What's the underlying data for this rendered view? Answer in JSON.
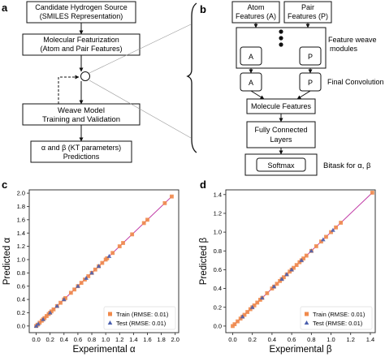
{
  "panels": {
    "a": {
      "letter": "a",
      "boxes": [
        [
          "Candidate Hydrogen Source",
          "(SMILES Representation)"
        ],
        [
          "Molecular Featurization",
          "(Atom and Pair Features)"
        ],
        [
          "Weave Model",
          "Training and Validation"
        ],
        [
          "α and β (KT parameters)",
          "Predictions"
        ]
      ]
    },
    "b": {
      "letter": "b",
      "atom_features": [
        "Atom",
        "Features (A)"
      ],
      "pair_features": [
        "Pair",
        "Features (P)"
      ],
      "module_label": [
        "Feature weave",
        "modules"
      ],
      "node_a": "A",
      "node_p": "P",
      "final_convolution": "Final Convolution",
      "molecule_features": "Molecule Features",
      "fully_connected": [
        "Fully Connected",
        "Layers"
      ],
      "softmax": "Softmax",
      "bitask": "Bitask for  α, β"
    }
  },
  "chart_data": [
    {
      "panel": "c",
      "type": "scatter",
      "xlabel": "Experimental α",
      "ylabel": "Predicted α",
      "xlim": [
        -0.1,
        2.05
      ],
      "ylim": [
        -0.1,
        2.05
      ],
      "xticks": [
        "0.0",
        "0.2",
        "0.4",
        "0.6",
        "0.8",
        "1.0",
        "1.2",
        "1.4",
        "1.6",
        "1.8",
        "2.0"
      ],
      "yticks": [
        "0.0",
        "0.2",
        "0.4",
        "0.6",
        "0.8",
        "1.0",
        "1.2",
        "1.4",
        "1.6",
        "1.8",
        "2.0"
      ],
      "legend_position": "bottom-right",
      "series": [
        {
          "name": "Train (RMSE: 0.01)",
          "marker": "square",
          "color": "#f08a4b",
          "points": [
            [
              0.0,
              0.0
            ],
            [
              0.02,
              0.02
            ],
            [
              0.05,
              0.05
            ],
            [
              0.08,
              0.08
            ],
            [
              0.1,
              0.1
            ],
            [
              0.12,
              0.12
            ],
            [
              0.15,
              0.15
            ],
            [
              0.18,
              0.18
            ],
            [
              0.2,
              0.2
            ],
            [
              0.22,
              0.22
            ],
            [
              0.25,
              0.25
            ],
            [
              0.3,
              0.3
            ],
            [
              0.35,
              0.35
            ],
            [
              0.4,
              0.4
            ],
            [
              0.42,
              0.42
            ],
            [
              0.5,
              0.5
            ],
            [
              0.55,
              0.55
            ],
            [
              0.6,
              0.6
            ],
            [
              0.65,
              0.65
            ],
            [
              0.7,
              0.7
            ],
            [
              0.75,
              0.75
            ],
            [
              0.8,
              0.8
            ],
            [
              0.85,
              0.85
            ],
            [
              0.9,
              0.9
            ],
            [
              0.95,
              0.95
            ],
            [
              1.0,
              1.0
            ],
            [
              1.02,
              1.02
            ],
            [
              1.1,
              1.1
            ],
            [
              1.2,
              1.2
            ],
            [
              1.25,
              1.25
            ],
            [
              1.38,
              1.38
            ],
            [
              1.55,
              1.55
            ],
            [
              1.6,
              1.6
            ],
            [
              1.85,
              1.85
            ],
            [
              1.95,
              1.95
            ]
          ]
        },
        {
          "name": "Test (RMSE: 0.01)",
          "marker": "triangle",
          "color": "#4a5fae",
          "points": [
            [
              0.0,
              0.0
            ],
            [
              0.03,
              0.03
            ],
            [
              0.1,
              0.1
            ],
            [
              0.2,
              0.2
            ],
            [
              0.3,
              0.3
            ],
            [
              0.4,
              0.4
            ],
            [
              0.6,
              0.6
            ],
            [
              0.72,
              0.72
            ],
            [
              0.8,
              0.8
            ],
            [
              0.9,
              0.9
            ],
            [
              1.05,
              1.05
            ]
          ]
        }
      ]
    },
    {
      "panel": "d",
      "type": "scatter",
      "xlabel": "Experimental β",
      "ylabel": "Predicted β",
      "xlim": [
        -0.07,
        1.45
      ],
      "ylim": [
        -0.07,
        1.45
      ],
      "xticks": [
        "0.0",
        "0.2",
        "0.4",
        "0.6",
        "0.8",
        "1.0",
        "1.2",
        "1.4"
      ],
      "yticks": [
        "0.0",
        "0.2",
        "0.4",
        "0.6",
        "0.8",
        "1.0",
        "1.2",
        "1.4"
      ],
      "legend_position": "bottom-right",
      "series": [
        {
          "name": "Train (RMSE: 0.01)",
          "marker": "square",
          "color": "#f08a4b",
          "points": [
            [
              0.0,
              0.0
            ],
            [
              0.02,
              0.02
            ],
            [
              0.05,
              0.05
            ],
            [
              0.08,
              0.08
            ],
            [
              0.1,
              0.1
            ],
            [
              0.12,
              0.12
            ],
            [
              0.15,
              0.15
            ],
            [
              0.18,
              0.18
            ],
            [
              0.2,
              0.2
            ],
            [
              0.22,
              0.22
            ],
            [
              0.25,
              0.25
            ],
            [
              0.28,
              0.28
            ],
            [
              0.3,
              0.3
            ],
            [
              0.35,
              0.35
            ],
            [
              0.4,
              0.4
            ],
            [
              0.42,
              0.42
            ],
            [
              0.45,
              0.45
            ],
            [
              0.48,
              0.48
            ],
            [
              0.5,
              0.5
            ],
            [
              0.52,
              0.52
            ],
            [
              0.55,
              0.55
            ],
            [
              0.58,
              0.58
            ],
            [
              0.6,
              0.6
            ],
            [
              0.62,
              0.62
            ],
            [
              0.65,
              0.65
            ],
            [
              0.68,
              0.68
            ],
            [
              0.7,
              0.7
            ],
            [
              0.72,
              0.72
            ],
            [
              0.75,
              0.75
            ],
            [
              0.8,
              0.8
            ],
            [
              0.85,
              0.85
            ],
            [
              0.9,
              0.9
            ],
            [
              0.95,
              0.95
            ],
            [
              1.0,
              1.0
            ],
            [
              1.05,
              1.05
            ],
            [
              1.1,
              1.1
            ],
            [
              1.42,
              1.42
            ]
          ]
        },
        {
          "name": "Test (RMSE: 0.01)",
          "marker": "triangle",
          "color": "#4a5fae",
          "points": [
            [
              0.1,
              0.1
            ],
            [
              0.2,
              0.2
            ],
            [
              0.3,
              0.3
            ],
            [
              0.42,
              0.42
            ],
            [
              0.5,
              0.5
            ],
            [
              0.55,
              0.55
            ],
            [
              0.6,
              0.6
            ],
            [
              0.7,
              0.7
            ],
            [
              0.8,
              0.8
            ],
            [
              0.92,
              0.92
            ],
            [
              1.02,
              1.02
            ]
          ]
        }
      ]
    }
  ]
}
